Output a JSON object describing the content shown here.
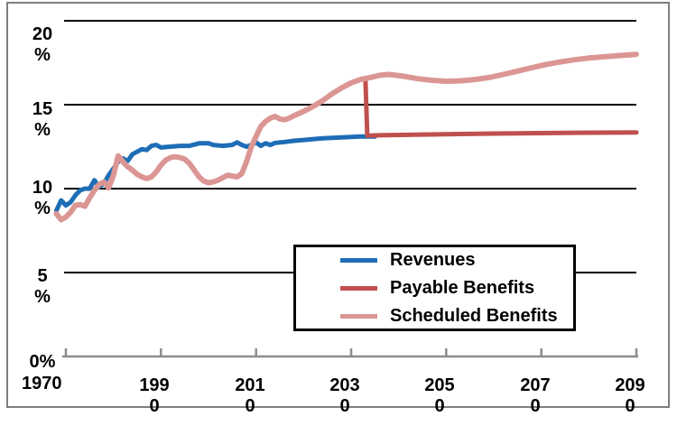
{
  "figure": {
    "background": "#ffffff",
    "frame_color": "#7f7f7f"
  },
  "legend": {
    "items": [
      {
        "label": "Revenues",
        "color": "#1e6db6"
      },
      {
        "label": "Payable Benefits",
        "color": "#c0504d"
      },
      {
        "label": "Scheduled Benefits",
        "color": "#db9694"
      }
    ]
  },
  "chart_data": {
    "type": "line",
    "title": "",
    "xlabel": "",
    "ylabel": "",
    "unit": "percent of taxable payroll",
    "grid": "horizontal",
    "legend_position": "bottom-center",
    "colors": {
      "gridline": "#000000",
      "axis": "#8c8c8c"
    },
    "x_axis": {
      "min": 1970,
      "max": 2090,
      "tick_interval": 20,
      "ticks": [
        {
          "year": 1970,
          "lines": [
            "1970"
          ]
        },
        {
          "year": 1990,
          "lines": [
            "199",
            "0"
          ]
        },
        {
          "year": 2010,
          "lines": [
            "201",
            "0"
          ]
        },
        {
          "year": 2030,
          "lines": [
            "203",
            "0"
          ]
        },
        {
          "year": 2050,
          "lines": [
            "205",
            "0"
          ]
        },
        {
          "year": 2070,
          "lines": [
            "207",
            "0"
          ]
        },
        {
          "year": 2090,
          "lines": [
            "209",
            "0"
          ]
        }
      ]
    },
    "y_axis": {
      "min": 0,
      "max": 20,
      "tick_interval": 5,
      "gridline_values": [
        5,
        10,
        15,
        20
      ],
      "ticks": [
        {
          "value": 20,
          "lines": [
            "20",
            "%"
          ]
        },
        {
          "value": 15,
          "lines": [
            "15",
            "%"
          ]
        },
        {
          "value": 10,
          "lines": [
            "10",
            "%"
          ]
        },
        {
          "value": 5,
          "lines": [
            "5",
            "%"
          ]
        },
        {
          "value": 0,
          "lines": [
            "0%"
          ]
        }
      ]
    },
    "series": [
      {
        "name": "Revenues",
        "color": "#1e6db6",
        "width": 5,
        "points": [
          [
            1968,
            8.7
          ],
          [
            1969,
            9.3
          ],
          [
            1970,
            9.0
          ],
          [
            1971,
            9.2
          ],
          [
            1972,
            9.6
          ],
          [
            1973,
            9.9
          ],
          [
            1974,
            10.0
          ],
          [
            1975,
            10.0
          ],
          [
            1976,
            10.5
          ],
          [
            1977,
            10.1
          ],
          [
            1978,
            10.3
          ],
          [
            1979,
            10.8
          ],
          [
            1980,
            11.2
          ],
          [
            1981,
            11.6
          ],
          [
            1982,
            11.8
          ],
          [
            1983,
            11.65
          ],
          [
            1984,
            12.05
          ],
          [
            1985,
            12.2
          ],
          [
            1986,
            12.35
          ],
          [
            1987,
            12.3
          ],
          [
            1988,
            12.55
          ],
          [
            1989,
            12.6
          ],
          [
            1990,
            12.45
          ],
          [
            1992,
            12.5
          ],
          [
            1994,
            12.55
          ],
          [
            1996,
            12.55
          ],
          [
            1998,
            12.7
          ],
          [
            2000,
            12.7
          ],
          [
            2001,
            12.6
          ],
          [
            2003,
            12.55
          ],
          [
            2005,
            12.6
          ],
          [
            2006,
            12.75
          ],
          [
            2007,
            12.6
          ],
          [
            2008,
            12.5
          ],
          [
            2009,
            12.6
          ],
          [
            2010,
            12.75
          ],
          [
            2011,
            12.55
          ],
          [
            2012,
            12.7
          ],
          [
            2013,
            12.6
          ],
          [
            2014,
            12.72
          ],
          [
            2016,
            12.78
          ],
          [
            2018,
            12.85
          ],
          [
            2020,
            12.9
          ],
          [
            2024,
            13.0
          ],
          [
            2028,
            13.05
          ],
          [
            2032,
            13.1
          ],
          [
            2035,
            13.1
          ]
        ]
      },
      {
        "name": "Payable Benefits",
        "color": "#c0504d",
        "width": 5,
        "points": [
          [
            2033,
            16.55
          ],
          [
            2033.4,
            13.15
          ],
          [
            2036,
            13.18
          ],
          [
            2045,
            13.22
          ],
          [
            2060,
            13.28
          ],
          [
            2075,
            13.32
          ],
          [
            2090,
            13.35
          ]
        ]
      },
      {
        "name": "Scheduled Benefits",
        "color": "#db9694",
        "width": 6,
        "points": [
          [
            1968,
            8.5
          ],
          [
            1969,
            8.15
          ],
          [
            1970,
            8.3
          ],
          [
            1971,
            8.6
          ],
          [
            1972,
            9.0
          ],
          [
            1973,
            9.05
          ],
          [
            1974,
            8.95
          ],
          [
            1975,
            9.45
          ],
          [
            1976,
            9.9
          ],
          [
            1977,
            10.25
          ],
          [
            1978,
            10.4
          ],
          [
            1979,
            10.05
          ],
          [
            1980,
            10.8
          ],
          [
            1981,
            11.95
          ],
          [
            1982,
            11.6
          ],
          [
            1983,
            11.3
          ],
          [
            1984,
            11.1
          ],
          [
            1985,
            10.85
          ],
          [
            1986,
            10.7
          ],
          [
            1987,
            10.6
          ],
          [
            1988,
            10.7
          ],
          [
            1989,
            11.0
          ],
          [
            1990,
            11.4
          ],
          [
            1991,
            11.7
          ],
          [
            1992,
            11.85
          ],
          [
            1993,
            11.9
          ],
          [
            1994,
            11.85
          ],
          [
            1995,
            11.75
          ],
          [
            1996,
            11.5
          ],
          [
            1997,
            11.1
          ],
          [
            1998,
            10.7
          ],
          [
            1999,
            10.45
          ],
          [
            2000,
            10.35
          ],
          [
            2001,
            10.4
          ],
          [
            2002,
            10.5
          ],
          [
            2003,
            10.65
          ],
          [
            2004,
            10.8
          ],
          [
            2005,
            10.75
          ],
          [
            2006,
            10.7
          ],
          [
            2007,
            10.9
          ],
          [
            2008,
            11.6
          ],
          [
            2009,
            12.5
          ],
          [
            2010,
            13.1
          ],
          [
            2011,
            13.7
          ],
          [
            2012,
            14.0
          ],
          [
            2013,
            14.2
          ],
          [
            2014,
            14.3
          ],
          [
            2015,
            14.15
          ],
          [
            2016,
            14.1
          ],
          [
            2017,
            14.2
          ],
          [
            2018,
            14.35
          ],
          [
            2020,
            14.6
          ],
          [
            2022,
            14.9
          ],
          [
            2024,
            15.25
          ],
          [
            2026,
            15.65
          ],
          [
            2028,
            16.0
          ],
          [
            2030,
            16.3
          ],
          [
            2032,
            16.5
          ],
          [
            2034,
            16.62
          ],
          [
            2036,
            16.75
          ],
          [
            2038,
            16.8
          ],
          [
            2041,
            16.7
          ],
          [
            2044,
            16.55
          ],
          [
            2047,
            16.45
          ],
          [
            2050,
            16.4
          ],
          [
            2053,
            16.42
          ],
          [
            2056,
            16.5
          ],
          [
            2059,
            16.62
          ],
          [
            2062,
            16.8
          ],
          [
            2065,
            17.0
          ],
          [
            2068,
            17.2
          ],
          [
            2071,
            17.4
          ],
          [
            2074,
            17.55
          ],
          [
            2077,
            17.68
          ],
          [
            2080,
            17.78
          ],
          [
            2083,
            17.85
          ],
          [
            2086,
            17.92
          ],
          [
            2090,
            18.0
          ]
        ]
      }
    ]
  }
}
